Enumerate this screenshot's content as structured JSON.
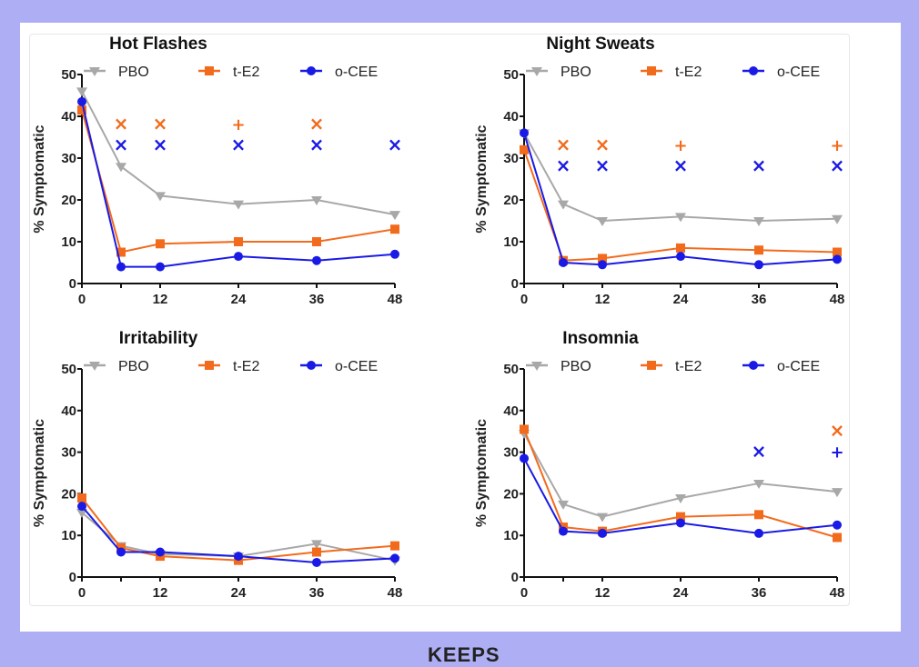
{
  "colors": {
    "PBO": "#a8a8a8",
    "t-E2": "#f26b1d",
    "o-CEE": "#1a1ae6",
    "background": "#aeaef5"
  },
  "footer_text": "KEEPS",
  "chart_data": [
    {
      "type": "line",
      "title": "Hot Flashes",
      "ylabel": "% Symptomatic",
      "xlabel": "",
      "x": [
        0,
        6,
        12,
        24,
        36,
        48
      ],
      "xticks": [
        "0",
        "12",
        "24",
        "36",
        "48"
      ],
      "yticks": [
        "0",
        "10",
        "20",
        "30",
        "40",
        "50"
      ],
      "ylim": [
        0,
        50
      ],
      "xlim": [
        0,
        48
      ],
      "legend": "top",
      "series": [
        {
          "name": "PBO",
          "marker": "triangle-down",
          "values": [
            46,
            28,
            21,
            19,
            20,
            16.5
          ]
        },
        {
          "name": "t-E2",
          "marker": "square",
          "values": [
            41.5,
            7.5,
            9.5,
            10,
            10,
            13
          ]
        },
        {
          "name": "o-CEE",
          "marker": "circle",
          "values": [
            43.5,
            4,
            4,
            6.5,
            5.5,
            7
          ]
        }
      ],
      "annotations": [
        {
          "series": "t-E2",
          "x": 6,
          "y": 38,
          "symbol": "×"
        },
        {
          "series": "t-E2",
          "x": 12,
          "y": 38,
          "symbol": "×"
        },
        {
          "series": "t-E2",
          "x": 24,
          "y": 38,
          "symbol": "+"
        },
        {
          "series": "t-E2",
          "x": 36,
          "y": 38,
          "symbol": "×"
        },
        {
          "series": "o-CEE",
          "x": 6,
          "y": 33,
          "symbol": "×"
        },
        {
          "series": "o-CEE",
          "x": 12,
          "y": 33,
          "symbol": "×"
        },
        {
          "series": "o-CEE",
          "x": 24,
          "y": 33,
          "symbol": "×"
        },
        {
          "series": "o-CEE",
          "x": 36,
          "y": 33,
          "symbol": "×"
        },
        {
          "series": "o-CEE",
          "x": 48,
          "y": 33,
          "symbol": "×"
        }
      ]
    },
    {
      "type": "line",
      "title": "Night Sweats",
      "ylabel": "% Symptomatic",
      "xlabel": "",
      "x": [
        0,
        6,
        12,
        24,
        36,
        48
      ],
      "xticks": [
        "0",
        "12",
        "24",
        "36",
        "48"
      ],
      "yticks": [
        "0",
        "10",
        "20",
        "30",
        "40",
        "50"
      ],
      "ylim": [
        0,
        50
      ],
      "xlim": [
        0,
        48
      ],
      "legend": "top",
      "series": [
        {
          "name": "PBO",
          "marker": "triangle-down",
          "values": [
            36,
            19,
            15,
            16,
            15,
            15.5
          ]
        },
        {
          "name": "t-E2",
          "marker": "square",
          "values": [
            32,
            5.5,
            6,
            8.5,
            8,
            7.5
          ]
        },
        {
          "name": "o-CEE",
          "marker": "circle",
          "values": [
            36,
            5,
            4.5,
            6.5,
            4.5,
            5.8
          ]
        }
      ],
      "annotations": [
        {
          "series": "t-E2",
          "x": 6,
          "y": 33,
          "symbol": "×"
        },
        {
          "series": "t-E2",
          "x": 12,
          "y": 33,
          "symbol": "×"
        },
        {
          "series": "t-E2",
          "x": 24,
          "y": 33,
          "symbol": "+"
        },
        {
          "series": "t-E2",
          "x": 48,
          "y": 33,
          "symbol": "+"
        },
        {
          "series": "o-CEE",
          "x": 6,
          "y": 28,
          "symbol": "×"
        },
        {
          "series": "o-CEE",
          "x": 12,
          "y": 28,
          "symbol": "×"
        },
        {
          "series": "o-CEE",
          "x": 24,
          "y": 28,
          "symbol": "×"
        },
        {
          "series": "o-CEE",
          "x": 36,
          "y": 28,
          "symbol": "×"
        },
        {
          "series": "o-CEE",
          "x": 48,
          "y": 28,
          "symbol": "×"
        }
      ]
    },
    {
      "type": "line",
      "title": "Irritability",
      "ylabel": "% Symptomatic",
      "xlabel": "",
      "x": [
        0,
        6,
        12,
        24,
        36,
        48
      ],
      "xticks": [
        "0",
        "12",
        "24",
        "36",
        "48"
      ],
      "yticks": [
        "0",
        "10",
        "20",
        "30",
        "40",
        "50"
      ],
      "ylim": [
        0,
        50
      ],
      "xlim": [
        0,
        48
      ],
      "legend": "top",
      "series": [
        {
          "name": "PBO",
          "marker": "triangle-down",
          "values": [
            15.5,
            7.5,
            5.5,
            5,
            8,
            4
          ]
        },
        {
          "name": "t-E2",
          "marker": "square",
          "values": [
            19,
            7,
            5,
            4,
            6,
            7.5
          ]
        },
        {
          "name": "o-CEE",
          "marker": "circle",
          "values": [
            17,
            6,
            6,
            5,
            3.5,
            4.5
          ]
        }
      ],
      "annotations": []
    },
    {
      "type": "line",
      "title": "Insomnia",
      "ylabel": "% Symptomatic",
      "xlabel": "",
      "x": [
        0,
        6,
        12,
        24,
        36,
        48
      ],
      "xticks": [
        "0",
        "12",
        "24",
        "36",
        "48"
      ],
      "yticks": [
        "0",
        "10",
        "20",
        "30",
        "40",
        "50"
      ],
      "ylim": [
        0,
        50
      ],
      "xlim": [
        0,
        48
      ],
      "legend": "top",
      "series": [
        {
          "name": "PBO",
          "marker": "triangle-down",
          "values": [
            34.5,
            17.5,
            14.5,
            19,
            22.5,
            20.5
          ]
        },
        {
          "name": "t-E2",
          "marker": "square",
          "values": [
            35.5,
            12,
            11,
            14.5,
            15,
            9.5
          ]
        },
        {
          "name": "o-CEE",
          "marker": "circle",
          "values": [
            28.5,
            11,
            10.5,
            13,
            10.5,
            12.5
          ]
        }
      ],
      "annotations": [
        {
          "series": "o-CEE",
          "x": 36,
          "y": 30,
          "symbol": "×"
        },
        {
          "series": "t-E2",
          "x": 48,
          "y": 35,
          "symbol": "×"
        },
        {
          "series": "o-CEE",
          "x": 48,
          "y": 30,
          "symbol": "+"
        }
      ]
    }
  ]
}
